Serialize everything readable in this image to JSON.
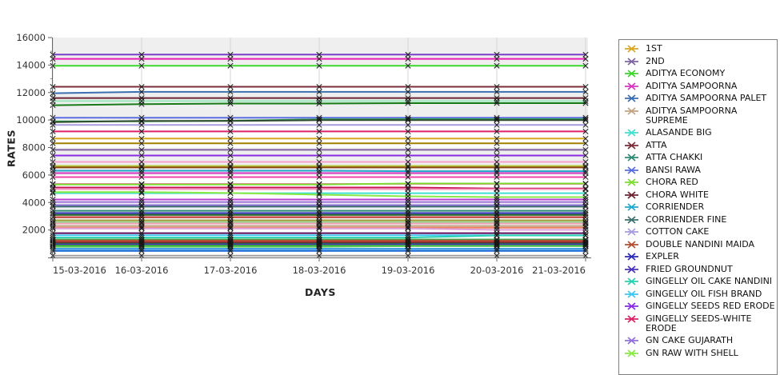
{
  "chart_data": {
    "type": "line",
    "title": "",
    "xlabel": "DAYS",
    "ylabel": "RATES",
    "x_categories": [
      "15-03-2016",
      "16-03-2016",
      "17-03-2016",
      "18-03-2016",
      "19-03-2016",
      "20-03-2016",
      "21-03-2016"
    ],
    "ylim": [
      0,
      16000
    ],
    "y_major_ticks": [
      2000,
      4000,
      6000,
      8000,
      10000,
      12000,
      14000,
      16000
    ],
    "y_minor_step": 1000,
    "grid": "vertical-on",
    "band_colors": [
      "#ffffff",
      "#efefef"
    ],
    "plot_border_color": "#808080",
    "marker_color": "#161616",
    "legend_position": "right",
    "series": [
      {
        "name": "",
        "color": "#7A3FC8",
        "values": 14760
      },
      {
        "name": "",
        "color": "#E81CB4",
        "values": 14450
      },
      {
        "name": "ADITYA ECONOMY",
        "color": "#3ED62E",
        "values": 13950
      },
      {
        "name": "ATTA",
        "color": "#7B2D3A",
        "values": 12420
      },
      {
        "name": "ADITYA SAMPOORNA PALET",
        "color": "#3A6FB0",
        "values": [
          11950,
          12050,
          12050,
          12050,
          12050,
          12050,
          12050
        ]
      },
      {
        "name": "CHORA WHITE",
        "color": "#6B2433",
        "values": 11600
      },
      {
        "name": "",
        "color": "#98E8B8",
        "values": 11380
      },
      {
        "name": "",
        "color": "#177A17",
        "values": [
          11080,
          11160,
          11200,
          11200,
          11230,
          11230,
          11230
        ]
      },
      {
        "name": "BANSI RAWA",
        "color": "#5B6EE1",
        "values": 10170
      },
      {
        "name": "",
        "color": "#2EA44F",
        "values": [
          9900,
          9900,
          9950,
          10050,
          10060,
          10060,
          10060
        ]
      },
      {
        "name": "",
        "color": "#2F4A2F",
        "values": [
          9850,
          9930,
          9930,
          9990,
          9990,
          9990,
          9990
        ]
      },
      {
        "name": "COTTON CAKE",
        "color": "#A89BE0",
        "values": 9640
      },
      {
        "name": "GINGELLY SEEDS-WHITE ERODE",
        "color": "#DD2266",
        "values": 9170
      },
      {
        "name": "1ST",
        "color": "#D9A520",
        "values": 8650
      },
      {
        "name": "",
        "color": "#A08000",
        "values": 8300
      },
      {
        "name": "2ND",
        "color": "#8064A2",
        "values": 7830
      },
      {
        "name": "GINGELLY SEEDS RED ERODE",
        "color": "#8A2BE2",
        "values": 7420
      },
      {
        "name": "",
        "color": "#F4A0C8",
        "values": 6950
      },
      {
        "name": "",
        "color": "#B5C837",
        "values": 6660
      },
      {
        "name": "",
        "color": "#8B4513",
        "values": 6550
      },
      {
        "name": "CORRIENDER",
        "color": "#1FAACC",
        "values": [
          6310,
          6310,
          6310,
          6310,
          6280,
          6280,
          6280
        ]
      },
      {
        "name": "ADITYA SAMPOORNA",
        "color": "#D935C0",
        "values": 6140
      },
      {
        "name": "",
        "color": "#EE44AA",
        "values": 5850
      },
      {
        "name": "",
        "color": "#F080B0",
        "values": 5350
      },
      {
        "name": "CHORA RED",
        "color": "#7CDD30",
        "values": [
          5310,
          5310,
          5310,
          5310,
          5380,
          5380,
          5380
        ]
      },
      {
        "name": "",
        "color": "#C81455",
        "values": [
          5090,
          5090,
          5090,
          5090,
          5090,
          5020,
          5020
        ]
      },
      {
        "name": "",
        "color": "#F8A0C8",
        "values": 4960
      },
      {
        "name": "ALASANDE BIG",
        "color": "#40E0D0",
        "values": 4680
      },
      {
        "name": "GN RAW WITH SHELL",
        "color": "#88E844",
        "values": [
          4760,
          4760,
          4690,
          4570,
          4450,
          4390,
          4390
        ]
      },
      {
        "name": "",
        "color": "#BA3FD0",
        "values": 4220
      },
      {
        "name": "",
        "color": "#9B72D8",
        "values": 4040
      },
      {
        "name": "GN CAKE GUJARATH",
        "color": "#9370DB",
        "values": 3810
      },
      {
        "name": "CORRIENDER FINE",
        "color": "#3D7070",
        "values": 3700
      },
      {
        "name": "ATTA CHAKKI",
        "color": "#2E8B74",
        "values": 3400
      },
      {
        "name": "EXPLER",
        "color": "#2B2BB8",
        "values": 3230
      },
      {
        "name": "",
        "color": "#1F5F1F",
        "values": 3100
      },
      {
        "name": "",
        "color": "#C03028",
        "values": 2930
      },
      {
        "name": "",
        "color": "#9A9A30",
        "values": 2700
      },
      {
        "name": "",
        "color": "#90D890",
        "values": 2560
      },
      {
        "name": "",
        "color": "#F2A0B8",
        "values": 2470
      },
      {
        "name": "ADITYA SAMPOORNA SUPREME",
        "color": "#C4A484",
        "values": 2290
      },
      {
        "name": "",
        "color": "#F08060",
        "values": 2170
      },
      {
        "name": "",
        "color": "#DDA0DD",
        "values": [
          2110,
          2110,
          2110,
          2110,
          2110,
          2010,
          2010
        ]
      },
      {
        "name": "",
        "color": "#5C0A5C",
        "values": 1770
      },
      {
        "name": "GINGELLY OIL FISH BRAND",
        "color": "#3CC8F0",
        "values": 1620
      },
      {
        "name": "GINGELLY OIL CAKE NANDINI",
        "color": "#2AD0B0",
        "values": [
          1450,
          1450,
          1450,
          1450,
          1450,
          1600,
          1600
        ]
      },
      {
        "name": "",
        "color": "#3CB054",
        "values": 1310
      },
      {
        "name": "DOUBLE NANDINI MAIDA",
        "color": "#B05030",
        "values": 1240
      },
      {
        "name": "",
        "color": "#C03030",
        "values": 1130
      },
      {
        "name": "",
        "color": "#8F1F2F",
        "values": 1080
      },
      {
        "name": "",
        "color": "#1F6F3F",
        "values": 1010
      },
      {
        "name": "FRIED GROUNDNUT",
        "color": "#4A35B8",
        "values": 950
      },
      {
        "name": "",
        "color": "#30B030",
        "values": 860
      },
      {
        "name": "",
        "color": "#58C858",
        "values": [
          780,
          780,
          780,
          780,
          820,
          820,
          820
        ]
      },
      {
        "name": "",
        "color": "#2090E0",
        "values": 620
      },
      {
        "name": "",
        "color": "#0C62D6",
        "values": 480
      },
      {
        "name": "",
        "color": "#A0A0A0",
        "values": 130
      }
    ]
  },
  "legend": {
    "items": [
      {
        "label": "1ST",
        "color": "#D9A520"
      },
      {
        "label": "2ND",
        "color": "#8064A2"
      },
      {
        "label": "ADITYA ECONOMY",
        "color": "#3ED62E"
      },
      {
        "label": "ADITYA SAMPOORNA",
        "color": "#D935C0"
      },
      {
        "label": "ADITYA SAMPOORNA PALET",
        "color": "#3A6FB0"
      },
      {
        "label": "ADITYA SAMPOORNA SUPREME",
        "color": "#C4A484"
      },
      {
        "label": "ALASANDE BIG",
        "color": "#40E0D0"
      },
      {
        "label": "ATTA",
        "color": "#7B2D3A"
      },
      {
        "label": "ATTA CHAKKI",
        "color": "#2E8B74"
      },
      {
        "label": "BANSI RAWA",
        "color": "#5B6EE1"
      },
      {
        "label": "CHORA RED",
        "color": "#7CDD30"
      },
      {
        "label": "CHORA WHITE",
        "color": "#6B2433"
      },
      {
        "label": "CORRIENDER",
        "color": "#1FAACC"
      },
      {
        "label": "CORRIENDER FINE",
        "color": "#3D7070"
      },
      {
        "label": "COTTON CAKE",
        "color": "#A89BE0"
      },
      {
        "label": "DOUBLE NANDINI MAIDA",
        "color": "#B05030"
      },
      {
        "label": "EXPLER",
        "color": "#2B2BB8"
      },
      {
        "label": "FRIED GROUNDNUT",
        "color": "#4A35B8"
      },
      {
        "label": "GINGELLY OIL CAKE NANDINI",
        "color": "#2AD0B0"
      },
      {
        "label": "GINGELLY OIL FISH BRAND",
        "color": "#3CC8F0"
      },
      {
        "label": "GINGELLY SEEDS RED ERODE",
        "color": "#8A2BE2"
      },
      {
        "label": "GINGELLY SEEDS-WHITE ERODE",
        "color": "#DD2266"
      },
      {
        "label": "GN CAKE GUJARATH",
        "color": "#9370DB"
      },
      {
        "label": "GN RAW WITH SHELL",
        "color": "#88E844"
      }
    ]
  }
}
